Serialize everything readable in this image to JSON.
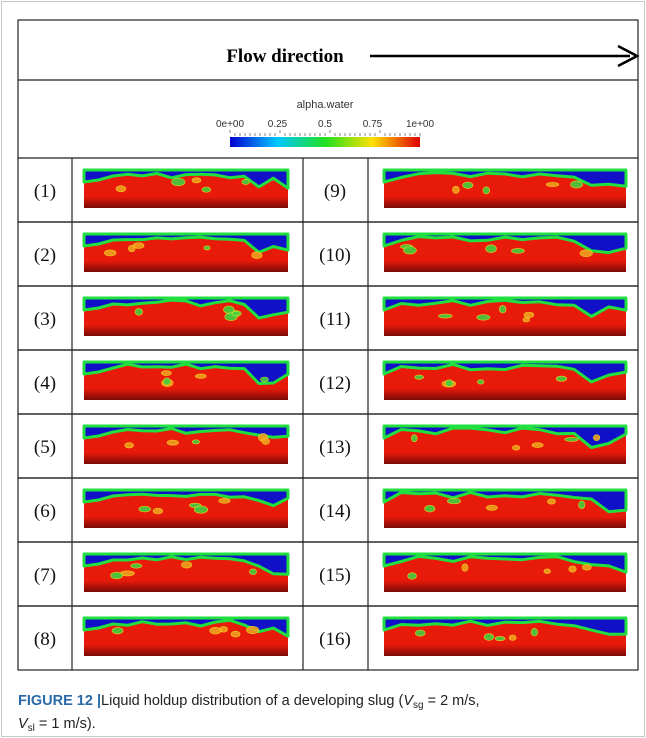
{
  "header": {
    "title": "Flow direction"
  },
  "colorbar": {
    "title": "alpha.water",
    "ticks": [
      "0e+00",
      "0.25",
      "0.5",
      "0.75",
      "1e+00"
    ]
  },
  "panels": [
    "(1)",
    "(2)",
    "(3)",
    "(4)",
    "(5)",
    "(6)",
    "(7)",
    "(8)",
    "(9)",
    "(10)",
    "(11)",
    "(12)",
    "(13)",
    "(14)",
    "(15)",
    "(16)"
  ],
  "caption": {
    "label": "FIGURE 12",
    "separator": "|",
    "text": "Liquid holdup distribution of a developing slug (",
    "v1": "V",
    "s1": "sg",
    "t1": " = 2 m/s,",
    "v2": "V",
    "s2": "sl",
    "t2": " = 1 m/s)."
  }
}
